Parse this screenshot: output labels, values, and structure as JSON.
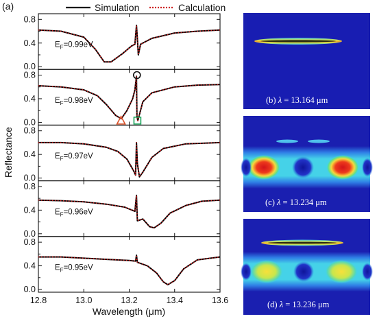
{
  "panel_label": "(a)",
  "chart_data": {
    "type": "line",
    "xlabel": "Wavelength (μm)",
    "ylabel": "Reflectance",
    "xlim": [
      12.8,
      13.6
    ],
    "ylim": [
      0.0,
      0.85
    ],
    "x_ticks": [
      "12.8",
      "13.0",
      "13.2",
      "13.4",
      "13.6"
    ],
    "y_ticks": [
      "0.0",
      "0.4",
      "0.8"
    ],
    "legend": {
      "position": "top",
      "entries": [
        "Simulation",
        "Calculation"
      ]
    },
    "series_styles": {
      "Simulation": {
        "color": "#000000",
        "dash": "solid"
      },
      "Calculation": {
        "color": "#cc1f1f",
        "dash": "dotted"
      }
    },
    "panels": [
      {
        "ef_label": "E",
        "ef_sub": "F",
        "ef_value": "=0.99eV",
        "curve": [
          [
            12.8,
            0.62
          ],
          [
            12.9,
            0.6
          ],
          [
            13.0,
            0.5
          ],
          [
            13.05,
            0.3
          ],
          [
            13.09,
            0.08
          ],
          [
            13.12,
            0.08
          ],
          [
            13.17,
            0.22
          ],
          [
            13.21,
            0.35
          ],
          [
            13.225,
            0.38
          ],
          [
            13.232,
            0.7
          ],
          [
            13.236,
            0.48
          ],
          [
            13.24,
            0.2
          ],
          [
            13.25,
            0.38
          ],
          [
            13.3,
            0.48
          ],
          [
            13.4,
            0.57
          ],
          [
            13.5,
            0.6
          ],
          [
            13.6,
            0.62
          ]
        ]
      },
      {
        "ef_label": "E",
        "ef_sub": "F",
        "ef_value": "=0.98eV",
        "curve": [
          [
            12.8,
            0.62
          ],
          [
            12.9,
            0.6
          ],
          [
            13.0,
            0.55
          ],
          [
            13.06,
            0.45
          ],
          [
            13.1,
            0.3
          ],
          [
            13.14,
            0.12
          ],
          [
            13.165,
            0.06
          ],
          [
            13.19,
            0.2
          ],
          [
            13.215,
            0.4
          ],
          [
            13.225,
            0.55
          ],
          [
            13.232,
            0.78
          ],
          [
            13.234,
            0.1
          ],
          [
            13.238,
            0.03
          ],
          [
            13.26,
            0.35
          ],
          [
            13.3,
            0.5
          ],
          [
            13.4,
            0.6
          ],
          [
            13.5,
            0.63
          ],
          [
            13.6,
            0.64
          ]
        ]
      },
      {
        "ef_label": "E",
        "ef_sub": "F",
        "ef_value": "=0.97eV",
        "curve": [
          [
            12.8,
            0.6
          ],
          [
            12.9,
            0.6
          ],
          [
            13.0,
            0.58
          ],
          [
            13.1,
            0.52
          ],
          [
            13.15,
            0.45
          ],
          [
            13.19,
            0.32
          ],
          [
            13.22,
            0.12
          ],
          [
            13.228,
            0.05
          ],
          [
            13.232,
            0.6
          ],
          [
            13.236,
            0.25
          ],
          [
            13.245,
            0.02
          ],
          [
            13.26,
            0.1
          ],
          [
            13.3,
            0.35
          ],
          [
            13.35,
            0.5
          ],
          [
            13.45,
            0.58
          ],
          [
            13.6,
            0.6
          ]
        ]
      },
      {
        "ef_label": "E",
        "ef_sub": "F",
        "ef_value": "=0.96eV",
        "curve": [
          [
            12.8,
            0.57
          ],
          [
            12.9,
            0.56
          ],
          [
            13.0,
            0.54
          ],
          [
            13.1,
            0.5
          ],
          [
            13.18,
            0.45
          ],
          [
            13.225,
            0.38
          ],
          [
            13.232,
            0.65
          ],
          [
            13.236,
            0.22
          ],
          [
            13.26,
            0.25
          ],
          [
            13.29,
            0.12
          ],
          [
            13.31,
            0.1
          ],
          [
            13.34,
            0.18
          ],
          [
            13.38,
            0.35
          ],
          [
            13.45,
            0.48
          ],
          [
            13.52,
            0.55
          ],
          [
            13.6,
            0.57
          ]
        ]
      },
      {
        "ef_label": "E",
        "ef_sub": "F",
        "ef_value": "=0.95eV",
        "curve": [
          [
            12.8,
            0.55
          ],
          [
            12.9,
            0.55
          ],
          [
            13.0,
            0.53
          ],
          [
            13.1,
            0.51
          ],
          [
            13.2,
            0.49
          ],
          [
            13.228,
            0.48
          ],
          [
            13.232,
            0.58
          ],
          [
            13.236,
            0.46
          ],
          [
            13.28,
            0.4
          ],
          [
            13.32,
            0.28
          ],
          [
            13.35,
            0.13
          ],
          [
            13.37,
            0.08
          ],
          [
            13.4,
            0.15
          ],
          [
            13.44,
            0.35
          ],
          [
            13.5,
            0.5
          ],
          [
            13.6,
            0.55
          ]
        ]
      }
    ],
    "markers": [
      {
        "panel": 1,
        "shape": "circle",
        "x": 13.234,
        "y": 0.8,
        "color": "#111111"
      },
      {
        "panel": 1,
        "shape": "triangle",
        "x": 13.164,
        "y": 0.03,
        "color": "#d9532b"
      },
      {
        "panel": 1,
        "shape": "square",
        "x": 13.236,
        "y": 0.03,
        "color": "#1aa35a"
      }
    ]
  },
  "field_maps": [
    {
      "caption_prefix": "(b) ",
      "caption_lambda": "λ",
      "caption_rest": " = 13.164 μm",
      "pattern": "thin-slit"
    },
    {
      "caption_prefix": "(c) ",
      "caption_lambda": "λ",
      "caption_rest": " = 13.234 μm",
      "pattern": "waveguide-red"
    },
    {
      "caption_prefix": "(d) ",
      "caption_lambda": "λ",
      "caption_rest": " = 13.236 μm",
      "pattern": "waveguide-yellow"
    }
  ],
  "colors": {
    "map_background": "#1a1fb0",
    "map_cyan": "#45d2e8",
    "map_hot": "#e8201a",
    "map_warm": "#f2d23a"
  }
}
